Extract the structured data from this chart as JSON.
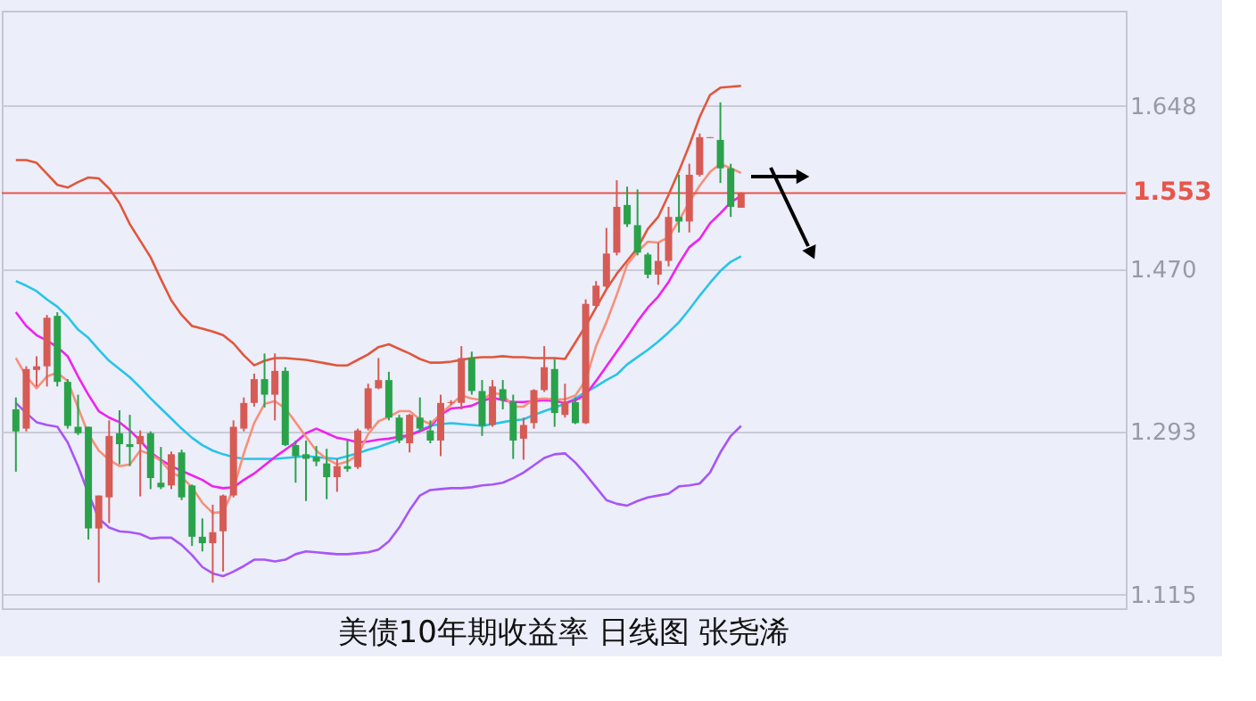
{
  "chart_data": {
    "type": "candlestick",
    "title": "美债10年期收益率 日线图 张尧浠",
    "categories": [
      null,
      null,
      null,
      null,
      null,
      null,
      null,
      null,
      null,
      null,
      null,
      null,
      null,
      null,
      null,
      null,
      null,
      null,
      null,
      null,
      null,
      null,
      null,
      null,
      null,
      null,
      null,
      null,
      null,
      null,
      null,
      null,
      null,
      null,
      null,
      null,
      null,
      null,
      null,
      null,
      null,
      null,
      null,
      null,
      null,
      null,
      null,
      null,
      null,
      null,
      null,
      null,
      null,
      null,
      null,
      null,
      null,
      null,
      null,
      null,
      null,
      null,
      null,
      null,
      null,
      null,
      null,
      null,
      null,
      null,
      null
    ],
    "ohlc": [
      [
        1.317,
        1.33,
        1.249,
        1.293
      ],
      [
        1.296,
        1.364,
        1.293,
        1.361
      ],
      [
        1.36,
        1.375,
        1.342,
        1.364
      ],
      [
        1.364,
        1.42,
        1.342,
        1.417
      ],
      [
        1.419,
        1.423,
        1.342,
        1.347
      ],
      [
        1.347,
        1.35,
        1.296,
        1.299
      ],
      [
        1.298,
        1.333,
        1.289,
        1.291
      ],
      [
        1.298,
        1.298,
        1.175,
        1.187
      ],
      [
        1.187,
        1.223,
        1.128,
        1.223
      ],
      [
        1.221,
        1.305,
        1.193,
        1.288
      ],
      [
        1.291,
        1.316,
        1.257,
        1.279
      ],
      [
        1.279,
        1.311,
        1.255,
        1.276
      ],
      [
        1.279,
        1.294,
        1.222,
        1.288
      ],
      [
        1.291,
        1.293,
        1.23,
        1.242
      ],
      [
        1.237,
        1.276,
        1.23,
        1.232
      ],
      [
        1.234,
        1.271,
        1.23,
        1.268
      ],
      [
        1.27,
        1.273,
        1.218,
        1.221
      ],
      [
        1.234,
        1.235,
        1.168,
        1.178
      ],
      [
        1.178,
        1.198,
        1.162,
        1.171
      ],
      [
        1.171,
        1.213,
        1.128,
        1.183
      ],
      [
        1.184,
        1.224,
        1.14,
        1.223
      ],
      [
        1.223,
        1.305,
        1.221,
        1.298
      ],
      [
        1.296,
        1.33,
        1.293,
        1.324
      ],
      [
        1.324,
        1.356,
        1.32,
        1.35
      ],
      [
        1.35,
        1.378,
        1.319,
        1.333
      ],
      [
        1.333,
        1.378,
        1.305,
        1.359
      ],
      [
        1.359,
        1.363,
        1.277,
        1.278
      ],
      [
        1.278,
        1.283,
        1.237,
        1.266
      ],
      [
        1.268,
        1.283,
        1.217,
        1.263
      ],
      [
        1.265,
        1.277,
        1.255,
        1.26
      ],
      [
        1.258,
        1.274,
        1.219,
        1.243
      ],
      [
        1.243,
        1.263,
        1.227,
        1.255
      ],
      [
        1.255,
        1.283,
        1.249,
        1.252
      ],
      [
        1.254,
        1.296,
        1.252,
        1.294
      ],
      [
        1.296,
        1.345,
        1.294,
        1.34
      ],
      [
        1.34,
        1.373,
        1.339,
        1.349
      ],
      [
        1.349,
        1.358,
        1.305,
        1.308
      ],
      [
        1.308,
        1.311,
        1.28,
        1.283
      ],
      [
        1.28,
        1.312,
        1.27,
        1.311
      ],
      [
        1.308,
        1.33,
        1.293,
        1.296
      ],
      [
        1.294,
        1.305,
        1.28,
        1.283
      ],
      [
        1.283,
        1.333,
        1.266,
        1.324
      ],
      [
        1.324,
        1.327,
        1.322,
        1.325
      ],
      [
        1.324,
        1.386,
        1.317,
        1.373
      ],
      [
        1.373,
        1.38,
        1.333,
        1.337
      ],
      [
        1.337,
        1.349,
        1.288,
        1.299
      ],
      [
        1.3,
        1.349,
        1.298,
        1.342
      ],
      [
        1.339,
        1.349,
        1.317,
        1.327
      ],
      [
        1.325,
        1.333,
        1.263,
        1.283
      ],
      [
        1.285,
        1.308,
        1.262,
        1.3
      ],
      [
        1.302,
        1.339,
        1.296,
        1.338
      ],
      [
        1.338,
        1.386,
        1.336,
        1.363
      ],
      [
        1.361,
        1.372,
        1.298,
        1.313
      ],
      [
        1.311,
        1.345,
        1.308,
        1.325
      ],
      [
        1.325,
        1.33,
        1.301,
        1.302
      ],
      [
        1.302,
        1.437,
        1.301,
        1.432
      ],
      [
        1.43,
        1.457,
        1.429,
        1.452
      ],
      [
        1.451,
        1.515,
        1.448,
        1.487
      ],
      [
        1.488,
        1.567,
        1.485,
        1.538
      ],
      [
        1.54,
        1.56,
        1.516,
        1.519
      ],
      [
        1.518,
        1.557,
        1.485,
        1.488
      ],
      [
        1.486,
        1.488,
        1.46,
        1.464
      ],
      [
        1.464,
        1.499,
        1.453,
        1.479
      ],
      [
        1.479,
        1.538,
        1.473,
        1.527
      ],
      [
        1.527,
        1.573,
        1.51,
        1.522
      ],
      [
        1.522,
        1.585,
        1.51,
        1.573
      ],
      [
        1.573,
        1.618,
        1.571,
        1.614
      ],
      [
        1.613,
        1.614,
        1.613,
        1.614
      ],
      [
        1.611,
        1.652,
        1.564,
        1.58
      ],
      [
        1.58,
        1.585,
        1.527,
        1.538
      ],
      [
        1.537,
        1.554,
        1.537,
        1.553
      ]
    ],
    "colors": [
      "#2aa24a",
      "#d65b55",
      "#d65b55",
      "#d65b55",
      "#2aa24a",
      "#2aa24a",
      "#2aa24a",
      "#2aa24a",
      "#d65b55",
      "#d65b55",
      "#2aa24a",
      "#2aa24a",
      "#d65b55",
      "#2aa24a",
      "#2aa24a",
      "#d65b55",
      "#2aa24a",
      "#2aa24a",
      "#2aa24a",
      "#d65b55",
      "#d65b55",
      "#d65b55",
      "#d65b55",
      "#d65b55",
      "#2aa24a",
      "#d65b55",
      "#2aa24a",
      "#2aa24a",
      "#2aa24a",
      "#2aa24a",
      "#2aa24a",
      "#d65b55",
      "#2aa24a",
      "#d65b55",
      "#d65b55",
      "#d65b55",
      "#2aa24a",
      "#2aa24a",
      "#d65b55",
      "#2aa24a",
      "#2aa24a",
      "#d65b55",
      "#d65b55",
      "#d65b55",
      "#2aa24a",
      "#2aa24a",
      "#d65b55",
      "#2aa24a",
      "#2aa24a",
      "#d65b55",
      "#d65b55",
      "#d65b55",
      "#2aa24a",
      "#d65b55",
      "#2aa24a",
      "#d65b55",
      "#d65b55",
      "#d65b55",
      "#d65b55",
      "#2aa24a",
      "#2aa24a",
      "#2aa24a",
      "#d65b55",
      "#d65b55",
      "#2aa24a",
      "#d65b55",
      "#d65b55",
      "#d65b55",
      "#2aa24a",
      "#2aa24a",
      "#d65b55"
    ],
    "series": [
      {
        "type": "line",
        "color": "#e0573c",
        "values": [
          1.589,
          1.589,
          1.586,
          1.574,
          1.562,
          1.559,
          1.565,
          1.57,
          1.569,
          1.558,
          1.542,
          1.519,
          1.501,
          1.483,
          1.459,
          1.436,
          1.42,
          1.408,
          1.405,
          1.402,
          1.398,
          1.389,
          1.376,
          1.365,
          1.37,
          1.373,
          1.373,
          1.372,
          1.371,
          1.369,
          1.367,
          1.365,
          1.365,
          1.371,
          1.377,
          1.385,
          1.388,
          1.383,
          1.378,
          1.372,
          1.368,
          1.368,
          1.369,
          1.371,
          1.373,
          1.374,
          1.374,
          1.375,
          1.374,
          1.374,
          1.373,
          1.373,
          1.373,
          1.372,
          1.39,
          1.408,
          1.428,
          1.448,
          1.465,
          1.479,
          1.493,
          1.514,
          1.527,
          1.551,
          1.577,
          1.605,
          1.636,
          1.66,
          1.668,
          1.669,
          1.67
        ]
      },
      {
        "type": "line",
        "color": "#a855f7",
        "values": [
          1.324,
          1.313,
          1.303,
          1.3,
          1.298,
          1.281,
          1.255,
          1.225,
          1.198,
          1.188,
          1.184,
          1.183,
          1.181,
          1.176,
          1.177,
          1.177,
          1.169,
          1.158,
          1.145,
          1.138,
          1.135,
          1.14,
          1.146,
          1.153,
          1.153,
          1.151,
          1.153,
          1.159,
          1.162,
          1.161,
          1.16,
          1.159,
          1.159,
          1.16,
          1.161,
          1.164,
          1.173,
          1.188,
          1.207,
          1.223,
          1.229,
          1.23,
          1.231,
          1.231,
          1.232,
          1.234,
          1.235,
          1.237,
          1.242,
          1.248,
          1.256,
          1.264,
          1.268,
          1.269,
          1.259,
          1.246,
          1.232,
          1.218,
          1.214,
          1.212,
          1.217,
          1.221,
          1.223,
          1.225,
          1.233,
          1.234,
          1.236,
          1.248,
          1.27,
          1.288,
          1.299
        ]
      },
      {
        "type": "line",
        "color": "#29c4e8",
        "values": [
          1.457,
          1.452,
          1.446,
          1.437,
          1.429,
          1.418,
          1.404,
          1.395,
          1.382,
          1.37,
          1.361,
          1.352,
          1.341,
          1.329,
          1.318,
          1.307,
          1.296,
          1.286,
          1.278,
          1.272,
          1.268,
          1.265,
          1.263,
          1.263,
          1.263,
          1.263,
          1.264,
          1.265,
          1.266,
          1.265,
          1.264,
          1.263,
          1.266,
          1.269,
          1.273,
          1.276,
          1.28,
          1.284,
          1.289,
          1.294,
          1.299,
          1.301,
          1.302,
          1.301,
          1.3,
          1.299,
          1.301,
          1.303,
          1.305,
          1.306,
          1.311,
          1.315,
          1.319,
          1.323,
          1.329,
          1.336,
          1.342,
          1.349,
          1.355,
          1.366,
          1.374,
          1.382,
          1.391,
          1.401,
          1.412,
          1.426,
          1.441,
          1.455,
          1.468,
          1.478,
          1.484
        ]
      },
      {
        "type": "line",
        "color": "#ee22ee",
        "values": [
          1.423,
          1.408,
          1.398,
          1.392,
          1.385,
          1.375,
          1.353,
          1.333,
          1.315,
          1.308,
          1.303,
          1.294,
          1.283,
          1.27,
          1.262,
          1.255,
          1.25,
          1.245,
          1.24,
          1.233,
          1.231,
          1.232,
          1.24,
          1.247,
          1.256,
          1.265,
          1.273,
          1.281,
          1.291,
          1.296,
          1.291,
          1.286,
          1.284,
          1.281,
          1.282,
          1.284,
          1.285,
          1.287,
          1.289,
          1.293,
          1.298,
          1.311,
          1.318,
          1.319,
          1.321,
          1.326,
          1.33,
          1.327,
          1.325,
          1.325,
          1.326,
          1.327,
          1.326,
          1.324,
          1.327,
          1.333,
          1.348,
          1.364,
          1.38,
          1.396,
          1.413,
          1.428,
          1.44,
          1.456,
          1.476,
          1.494,
          1.503,
          1.52,
          1.531,
          1.543,
          1.55
        ]
      },
      {
        "type": "line",
        "color": "#f7907a",
        "values": [
          1.373,
          1.353,
          1.34,
          1.353,
          1.357,
          1.348,
          1.319,
          1.29,
          1.272,
          1.262,
          1.255,
          1.257,
          1.272,
          1.268,
          1.261,
          1.248,
          1.243,
          1.232,
          1.215,
          1.204,
          1.205,
          1.23,
          1.269,
          1.302,
          1.323,
          1.326,
          1.318,
          1.303,
          1.287,
          1.272,
          1.263,
          1.257,
          1.26,
          1.267,
          1.29,
          1.304,
          1.309,
          1.315,
          1.315,
          1.306,
          1.301,
          1.312,
          1.322,
          1.332,
          1.329,
          1.327,
          1.335,
          1.333,
          1.32,
          1.32,
          1.328,
          1.329,
          1.328,
          1.328,
          1.332,
          1.349,
          1.386,
          1.412,
          1.442,
          1.475,
          1.489,
          1.5,
          1.499,
          1.505,
          1.523,
          1.543,
          1.561,
          1.576,
          1.585,
          1.58,
          1.575
        ]
      }
    ],
    "ref_lines": [
      {
        "axis": "y",
        "value": 1.553,
        "label": "1.553",
        "color": "#e8554a"
      }
    ],
    "ylim": [
      1.1,
      1.752
    ],
    "yticks": [
      1.115,
      1.293,
      {
        "value": 1.47,
        "label": "1.470"
      },
      1.648
    ],
    "tick_labels": "y",
    "grid": "y"
  }
}
